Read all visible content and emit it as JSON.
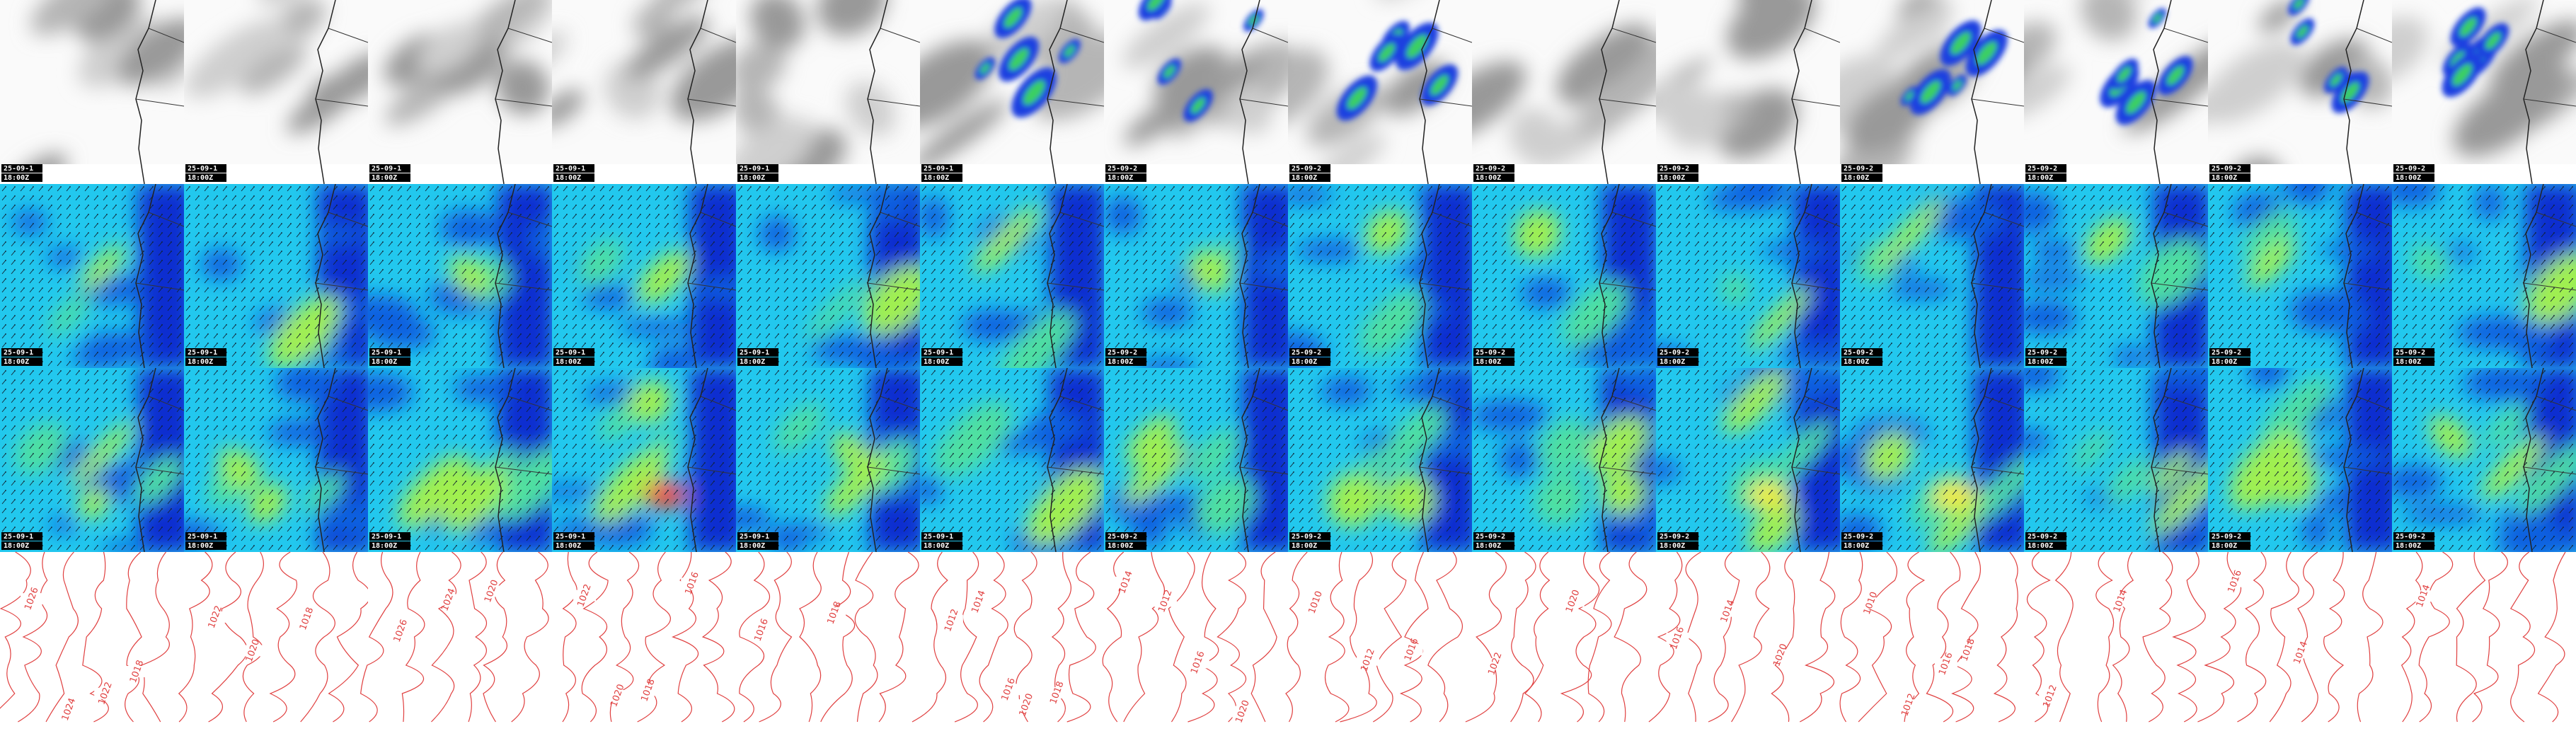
{
  "rows": [
    {
      "panels": [
        {
          "date": "25-09-1",
          "time": "18:00Z"
        },
        {
          "date": "25-09-1",
          "time": "18:00Z"
        },
        {
          "date": "25-09-1",
          "time": "18:00Z"
        },
        {
          "date": "25-09-1",
          "time": "18:00Z"
        },
        {
          "date": "25-09-1",
          "time": "18:00Z"
        },
        {
          "date": "25-09-1",
          "time": "18:00Z"
        },
        {
          "date": "25-09-2",
          "time": "18:00Z"
        },
        {
          "date": "25-09-2",
          "time": "18:00Z"
        },
        {
          "date": "25-09-2",
          "time": "18:00Z"
        },
        {
          "date": "25-09-2",
          "time": "18:00Z"
        },
        {
          "date": "25-09-2",
          "time": "18:00Z"
        },
        {
          "date": "25-09-2",
          "time": "18:00Z"
        },
        {
          "date": "25-09-2",
          "time": "18:00Z"
        },
        {
          "date": "25-09-2",
          "time": "18:00Z"
        }
      ]
    },
    {
      "panels": [
        {
          "date": "25-09-1",
          "time": "18:00Z"
        },
        {
          "date": "25-09-1",
          "time": "18:00Z"
        },
        {
          "date": "25-09-1",
          "time": "18:00Z"
        },
        {
          "date": "25-09-1",
          "time": "18:00Z"
        },
        {
          "date": "25-09-1",
          "time": "18:00Z"
        },
        {
          "date": "25-09-1",
          "time": "18:00Z"
        },
        {
          "date": "25-09-2",
          "time": "18:00Z"
        },
        {
          "date": "25-09-2",
          "time": "18:00Z"
        },
        {
          "date": "25-09-2",
          "time": "18:00Z"
        },
        {
          "date": "25-09-2",
          "time": "18:00Z"
        },
        {
          "date": "25-09-2",
          "time": "18:00Z"
        },
        {
          "date": "25-09-2",
          "time": "18:00Z"
        },
        {
          "date": "25-09-2",
          "time": "18:00Z"
        },
        {
          "date": "25-09-2",
          "time": "18:00Z"
        }
      ]
    },
    {
      "panels": [
        {
          "date": "25-09-1",
          "time": "18:00Z"
        },
        {
          "date": "25-09-1",
          "time": "18:00Z"
        },
        {
          "date": "25-09-1",
          "time": "18:00Z"
        },
        {
          "date": "25-09-1",
          "time": "18:00Z"
        },
        {
          "date": "25-09-1",
          "time": "18:00Z"
        },
        {
          "date": "25-09-1",
          "time": "18:00Z"
        },
        {
          "date": "25-09-2",
          "time": "18:00Z"
        },
        {
          "date": "25-09-2",
          "time": "18:00Z"
        },
        {
          "date": "25-09-2",
          "time": "18:00Z"
        },
        {
          "date": "25-09-2",
          "time": "18:00Z"
        },
        {
          "date": "25-09-2",
          "time": "18:00Z"
        },
        {
          "date": "25-09-2",
          "time": "18:00Z"
        },
        {
          "date": "25-09-2",
          "time": "18:00Z"
        },
        {
          "date": "25-09-2",
          "time": "18:00Z"
        }
      ]
    }
  ],
  "contours": [
    {
      "labels": [
        "1026",
        "1024",
        "1022",
        "1018"
      ]
    },
    {
      "labels": [
        "1022",
        "1020",
        "1018"
      ]
    },
    {
      "labels": [
        "1026",
        "1024",
        "1020"
      ]
    },
    {
      "labels": [
        "1022",
        "1020",
        "1018",
        "1016"
      ]
    },
    {
      "labels": [
        "1016",
        "1018"
      ]
    },
    {
      "labels": [
        "1012",
        "1014",
        "1016",
        "1020",
        "1018"
      ]
    },
    {
      "labels": [
        "1014",
        "1012",
        "1016",
        "1020"
      ]
    },
    {
      "labels": [
        "1010",
        "1012",
        "1016"
      ]
    },
    {
      "labels": [
        "1022",
        "1020"
      ]
    },
    {
      "labels": [
        "1016",
        "1014",
        "1020"
      ]
    },
    {
      "labels": [
        "1010",
        "1012",
        "1016",
        "1018"
      ]
    },
    {
      "labels": [
        "1012",
        "1014"
      ]
    },
    {
      "labels": [
        "1016",
        "1014"
      ]
    },
    {
      "labels": [
        "1014"
      ]
    }
  ]
}
